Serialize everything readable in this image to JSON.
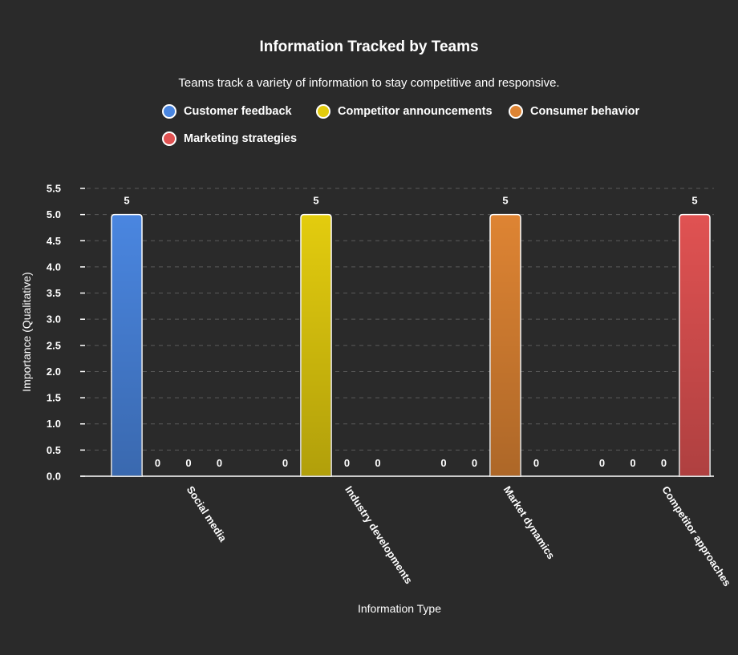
{
  "chart_data": {
    "type": "bar",
    "title": "Information Tracked by Teams",
    "subtitle": "Teams track a variety of information to stay competitive and responsive.",
    "xlabel": "Information Type",
    "ylabel": "Importance (Qualitative)",
    "ylim": [
      0,
      5.5
    ],
    "yticks": [
      "0.0",
      "0.5",
      "1.0",
      "1.5",
      "2.0",
      "2.5",
      "3.0",
      "3.5",
      "4.0",
      "4.5",
      "5.0",
      "5.5"
    ],
    "grid": true,
    "legend_position": "top",
    "categories": [
      "Social media",
      "Industry developments",
      "Market dynamics",
      "Competitor approaches"
    ],
    "series": [
      {
        "name": "Customer feedback",
        "color": "#4a86e0",
        "values": [
          5,
          0,
          0,
          0
        ]
      },
      {
        "name": "Competitor announcements",
        "color": "#e3cc0e",
        "values": [
          0,
          5,
          0,
          0
        ]
      },
      {
        "name": "Consumer behavior",
        "color": "#de8433",
        "values": [
          0,
          0,
          5,
          0
        ]
      },
      {
        "name": "Marketing strategies",
        "color": "#e05252",
        "values": [
          0,
          0,
          0,
          5
        ]
      }
    ]
  }
}
